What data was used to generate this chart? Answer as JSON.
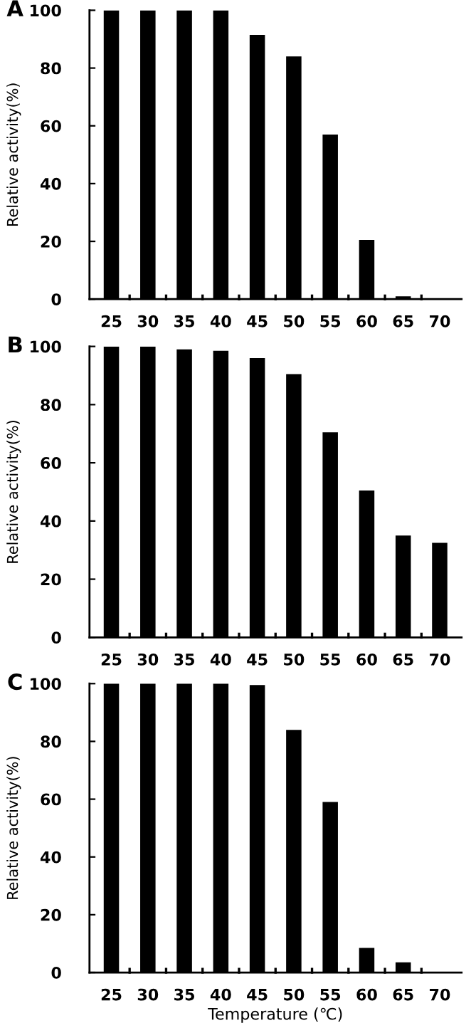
{
  "chart_data": [
    {
      "type": "bar",
      "title": "A",
      "ylabel": "Relative activity(%)",
      "categories": [
        "25",
        "30",
        "35",
        "40",
        "45",
        "50",
        "55",
        "60",
        "65",
        "70"
      ],
      "values": [
        100,
        100,
        100,
        100,
        91.5,
        84,
        57,
        20.5,
        1,
        0
      ],
      "color": "#000000",
      "ylim": [
        0,
        100
      ],
      "yticks": [
        0,
        20,
        40,
        60,
        80,
        100
      ],
      "grid": false,
      "legend": false
    },
    {
      "type": "bar",
      "title": "B",
      "ylabel": "Relative activity(%)",
      "categories": [
        "25",
        "30",
        "35",
        "40",
        "45",
        "50",
        "55",
        "60",
        "65",
        "70"
      ],
      "values": [
        100,
        100,
        99,
        98.5,
        96,
        90.5,
        70.5,
        50.5,
        35,
        32.5
      ],
      "color": "#000000",
      "ylim": [
        0,
        100
      ],
      "yticks": [
        0,
        20,
        40,
        60,
        80,
        100
      ],
      "grid": false,
      "legend": false
    },
    {
      "type": "bar",
      "title": "C",
      "ylabel": "Relative activity(%)",
      "xlabel": "Temperature (℃)",
      "categories": [
        "25",
        "30",
        "35",
        "40",
        "45",
        "50",
        "55",
        "60",
        "65",
        "70"
      ],
      "values": [
        100,
        100,
        100,
        100,
        99.5,
        84,
        59,
        8.5,
        3.5,
        0
      ],
      "color": "#000000",
      "ylim": [
        0,
        100
      ],
      "yticks": [
        0,
        20,
        40,
        60,
        80,
        100
      ],
      "grid": false,
      "legend": false
    }
  ]
}
